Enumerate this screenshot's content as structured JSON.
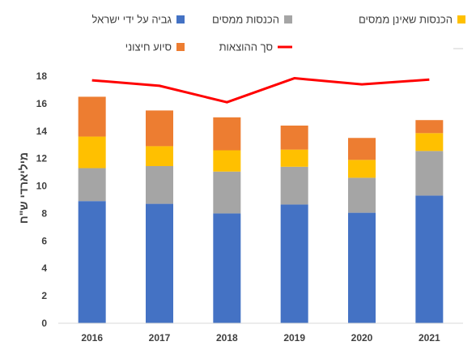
{
  "chart_data": {
    "type": "bar",
    "stacked": true,
    "categories": [
      "2016",
      "2017",
      "2018",
      "2019",
      "2020",
      "2021"
    ],
    "ylabel": "מיליארדי ש\"ח",
    "ylim": [
      0,
      18
    ],
    "yticks": [
      0,
      2,
      4,
      6,
      8,
      10,
      12,
      14,
      16,
      18
    ],
    "grid": false,
    "legend_position": "top",
    "series": [
      {
        "name": "גביה על ידי ישראל",
        "kind": "bar",
        "color": "#4472C4",
        "values": [
          8.9,
          8.7,
          8.0,
          8.65,
          8.05,
          9.3
        ]
      },
      {
        "name": "הכנסות ממסים",
        "kind": "bar",
        "color": "#A5A5A5",
        "values": [
          2.4,
          2.75,
          3.05,
          2.75,
          2.55,
          3.25
        ]
      },
      {
        "name": "הכנסות שאינן ממסים",
        "kind": "bar",
        "color": "#FFC000",
        "values": [
          2.3,
          1.45,
          1.55,
          1.25,
          1.3,
          1.3
        ]
      },
      {
        "name": "סיוע חיצוני",
        "kind": "bar",
        "color": "#ED7D31",
        "values": [
          2.9,
          2.6,
          2.4,
          1.75,
          1.6,
          0.95
        ]
      },
      {
        "name": "סך ההוצאות",
        "kind": "line",
        "color": "#FF0000",
        "values": [
          17.7,
          17.3,
          16.1,
          17.85,
          17.4,
          17.75
        ]
      }
    ]
  }
}
